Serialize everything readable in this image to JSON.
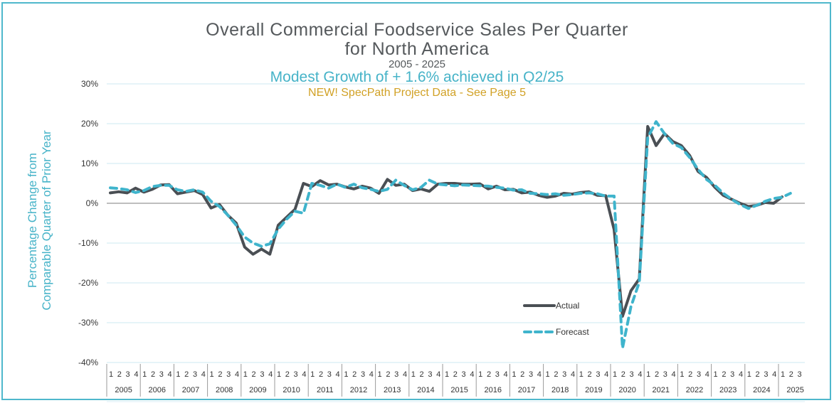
{
  "chart_data": {
    "type": "line",
    "title": "Overall Commercial Foodservice Sales Per Quarter",
    "title_line2": "for North America",
    "subtitle": "2005 - 2025",
    "highlight": "Modest Growth of + 1.6% achieved in Q2/25",
    "notice": "NEW! SpecPath Project Data - See Page 5",
    "xlabel": "",
    "ylabel_line1": "Percentage Change from",
    "ylabel_line2": "Comparable Quarter of Prior Year",
    "ylim": [
      -40,
      30
    ],
    "yticks": [
      30,
      20,
      10,
      0,
      -10,
      -20,
      -30,
      -40
    ],
    "ytick_labels": [
      "30%",
      "20%",
      "10%",
      "0%",
      "-10%",
      "-20%",
      "-30%",
      "-40%"
    ],
    "grid": true,
    "legend_position": "lower-middle-right",
    "years": [
      "2005",
      "2006",
      "2007",
      "2008",
      "2009",
      "2010",
      "2011",
      "2012",
      "2013",
      "2014",
      "2015",
      "2016",
      "2017",
      "2018",
      "2019",
      "2020",
      "2021",
      "2022",
      "2023",
      "2024",
      "2025"
    ],
    "quarters_per_year": [
      4,
      4,
      4,
      4,
      4,
      4,
      4,
      4,
      4,
      4,
      4,
      4,
      4,
      4,
      4,
      4,
      4,
      4,
      4,
      4,
      3
    ],
    "quarter_labels": [
      "1",
      "2",
      "3",
      "4"
    ],
    "series": [
      {
        "name": "Actual",
        "color": "#4a4f54",
        "style": "solid",
        "values": [
          2.6,
          2.9,
          2.6,
          3.8,
          2.8,
          3.5,
          4.6,
          4.7,
          2.4,
          2.8,
          3.2,
          2.2,
          -1.2,
          -0.3,
          -3.0,
          -5.0,
          -11.0,
          -12.8,
          -11.5,
          -12.8,
          -5.5,
          -3.5,
          -1.5,
          5.0,
          4.2,
          5.7,
          4.6,
          4.8,
          4.1,
          3.6,
          4.3,
          3.8,
          2.5,
          6.0,
          4.5,
          4.8,
          3.2,
          3.6,
          3.0,
          4.8,
          5.0,
          5.0,
          4.8,
          4.8,
          4.9,
          3.6,
          4.3,
          3.4,
          3.5,
          2.6,
          2.8,
          2.0,
          1.5,
          1.8,
          2.5,
          2.3,
          2.7,
          2.9,
          2.0,
          1.9,
          -6.6,
          -28.4,
          -22.0,
          -19.0,
          19.3,
          14.5,
          17.5,
          15.5,
          14.5,
          12.0,
          8.0,
          6.5,
          4.0,
          2.0,
          1.0,
          0.0,
          -0.8,
          -0.5,
          0.2,
          0.0,
          1.6
        ]
      },
      {
        "name": "Forecast",
        "color": "#3fb4cc",
        "style": "dashed",
        "values": [
          3.9,
          3.7,
          3.4,
          2.7,
          3.2,
          4.2,
          4.5,
          4.5,
          3.4,
          3.0,
          3.4,
          2.8,
          0.5,
          -0.8,
          -3.0,
          -5.5,
          -8.5,
          -10.0,
          -10.8,
          -10.2,
          -6.5,
          -4.0,
          -2.0,
          -2.5,
          5.0,
          4.5,
          3.8,
          4.8,
          4.0,
          4.8,
          3.9,
          3.5,
          3.0,
          3.5,
          5.8,
          4.5,
          3.4,
          4.0,
          5.8,
          4.8,
          4.6,
          4.4,
          4.6,
          4.5,
          4.4,
          4.3,
          4.0,
          3.8,
          3.3,
          3.4,
          2.5,
          2.4,
          2.2,
          2.4,
          2.0,
          2.2,
          2.5,
          2.6,
          2.4,
          1.8,
          1.8,
          -36.4,
          -26.0,
          -19.8,
          16.5,
          20.5,
          17.5,
          15.0,
          14.0,
          11.5,
          8.5,
          6.0,
          4.5,
          2.5,
          1.0,
          -0.3,
          -1.3,
          -0.5,
          0.5,
          1.2,
          1.5,
          2.5
        ]
      }
    ],
    "legend": [
      {
        "label": "Actual"
      },
      {
        "label": "Forecast"
      }
    ]
  }
}
